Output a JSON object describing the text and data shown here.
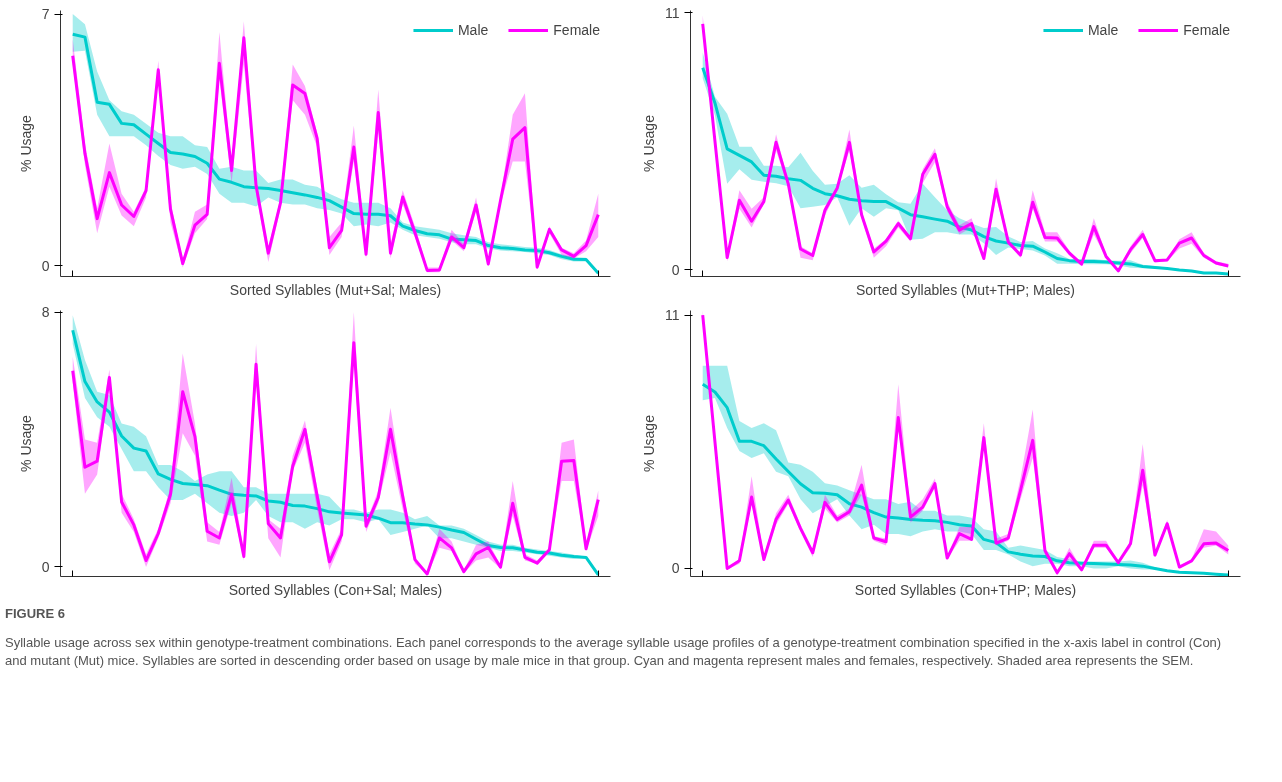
{
  "chart_data": [
    {
      "type": "line",
      "xlabel": "Sorted Syllables (Mut+Sal; Males)",
      "ylabel": "% Usage",
      "categories": [
        null,
        null,
        null,
        null,
        null,
        null,
        null,
        null,
        null,
        null,
        null,
        null,
        null,
        null,
        null,
        null,
        null,
        null,
        null,
        null,
        null,
        null,
        null,
        null,
        null,
        null,
        null,
        null,
        null,
        null,
        null,
        null,
        null,
        null,
        null,
        null,
        null,
        null,
        null,
        null,
        null,
        null,
        null,
        null
      ],
      "ylim": [
        -0.3,
        7.1
      ],
      "yticks": [
        0,
        7
      ],
      "tick_labels": "y",
      "grid": false,
      "legend": "top right",
      "line_style": "solid",
      "series": [
        {
          "name": "Male",
          "color": "#00cccc",
          "values": [
            6.44,
            6.36,
            4.55,
            4.49,
            3.96,
            3.92,
            3.66,
            3.4,
            3.15,
            3.11,
            3.04,
            2.85,
            2.41,
            2.32,
            2.2,
            2.17,
            2.15,
            2.09,
            2.03,
            1.97,
            1.9,
            1.81,
            1.63,
            1.45,
            1.43,
            1.43,
            1.39,
            1.1,
            0.98,
            0.89,
            0.86,
            0.74,
            0.72,
            0.7,
            0.56,
            0.5,
            0.48,
            0.44,
            0.42,
            0.36,
            0.26,
            0.18,
            0.17,
            -0.21
          ],
          "lower": [
            5.95,
            5.98,
            4.2,
            3.6,
            3.6,
            3.6,
            3.35,
            3.05,
            2.8,
            2.7,
            2.75,
            2.55,
            2.0,
            1.75,
            1.75,
            1.65,
            1.9,
            1.75,
            1.7,
            1.7,
            1.6,
            1.55,
            1.45,
            1.1,
            1.15,
            1.1,
            1.2,
            1.0,
            0.85,
            0.8,
            0.75,
            0.65,
            0.6,
            0.6,
            0.48,
            0.42,
            0.4,
            0.38,
            0.34,
            0.3,
            0.18,
            0.12,
            0.12,
            -0.25
          ],
          "upper": [
            7.0,
            6.72,
            5.4,
            4.6,
            4.3,
            4.2,
            3.95,
            3.7,
            3.6,
            3.6,
            3.35,
            3.3,
            2.7,
            2.75,
            2.65,
            2.65,
            2.3,
            2.4,
            2.4,
            2.25,
            2.2,
            2.0,
            1.85,
            1.75,
            1.75,
            1.75,
            1.6,
            1.2,
            1.1,
            1.05,
            1.0,
            0.9,
            0.85,
            0.8,
            0.65,
            0.6,
            0.56,
            0.52,
            0.5,
            0.44,
            0.32,
            0.24,
            0.22,
            -0.17
          ]
        },
        {
          "name": "Female",
          "color": "#ff00ff",
          "values": [
            5.84,
            3.12,
            1.31,
            2.59,
            1.69,
            1.37,
            2.09,
            5.45,
            1.57,
            0.06,
            1.13,
            1.43,
            5.63,
            2.65,
            6.34,
            2.23,
            0.35,
            1.75,
            5.03,
            4.79,
            3.54,
            0.5,
            0.98,
            3.3,
            0.32,
            4.26,
            0.35,
            1.91,
            0.92,
            -0.13,
            -0.12,
            0.8,
            0.5,
            1.69,
            0.05,
            1.81,
            3.52,
            3.84,
            -0.04,
            1.01,
            0.44,
            0.26,
            0.56,
            1.42
          ],
          "lower": [
            5.6,
            2.8,
            0.9,
            2.2,
            1.4,
            1.1,
            1.9,
            5.2,
            1.2,
            -0.05,
            0.9,
            1.3,
            5.2,
            2.3,
            5.6,
            2.0,
            0.1,
            1.6,
            4.6,
            4.2,
            3.3,
            0.3,
            0.8,
            2.9,
            0.2,
            3.7,
            0.2,
            1.7,
            0.8,
            -0.18,
            -0.18,
            0.7,
            0.4,
            1.5,
            -0.02,
            1.7,
            2.9,
            2.9,
            -0.1,
            0.9,
            0.3,
            0.2,
            0.4,
            0.8
          ],
          "upper": [
            6.3,
            3.4,
            1.6,
            3.4,
            2.0,
            1.5,
            2.2,
            5.7,
            1.8,
            0.15,
            1.5,
            1.7,
            6.5,
            2.8,
            6.8,
            2.4,
            0.5,
            1.9,
            5.6,
            5.0,
            3.7,
            0.8,
            1.2,
            3.9,
            0.5,
            4.9,
            0.6,
            2.1,
            1.1,
            -0.05,
            -0.05,
            1.0,
            0.6,
            1.9,
            0.1,
            1.9,
            4.2,
            4.8,
            0.05,
            1.1,
            0.5,
            0.35,
            0.7,
            2.0
          ]
        }
      ]
    },
    {
      "type": "line",
      "xlabel": "Sorted Syllables (Mut+THP; Males)",
      "ylabel": "% Usage",
      "categories": [
        null,
        null,
        null,
        null,
        null,
        null,
        null,
        null,
        null,
        null,
        null,
        null,
        null,
        null,
        null,
        null,
        null,
        null,
        null,
        null,
        null,
        null,
        null,
        null,
        null,
        null,
        null,
        null,
        null,
        null,
        null,
        null,
        null,
        null,
        null,
        null,
        null,
        null,
        null,
        null,
        null,
        null,
        null,
        null
      ],
      "ylim": [
        -0.3,
        11.1
      ],
      "yticks": [
        0,
        11
      ],
      "tick_labels": "y",
      "grid": false,
      "legend": "top right",
      "line_style": "solid",
      "series": [
        {
          "name": "Male",
          "color": "#00cccc",
          "values": [
            8.65,
            7.14,
            5.17,
            4.89,
            4.61,
            4.04,
            4.0,
            3.89,
            3.82,
            3.48,
            3.25,
            3.16,
            3.01,
            2.95,
            2.91,
            2.91,
            2.63,
            2.35,
            2.26,
            2.16,
            2.07,
            1.82,
            1.69,
            1.41,
            1.22,
            1.13,
            1.03,
            1.0,
            0.75,
            0.47,
            0.38,
            0.34,
            0.34,
            0.32,
            0.28,
            0.24,
            0.13,
            0.09,
            0.04,
            -0.02,
            -0.06,
            -0.15,
            -0.15,
            -0.19
          ],
          "lower": [
            8.2,
            6.6,
            3.67,
            4.3,
            3.85,
            3.76,
            3.7,
            3.57,
            2.63,
            2.69,
            2.76,
            3.1,
            1.88,
            2.63,
            2.26,
            2.63,
            2.54,
            1.28,
            1.32,
            1.6,
            1.6,
            1.5,
            1.5,
            1.13,
            0.62,
            0.94,
            0.88,
            0.81,
            0.6,
            0.25,
            0.25,
            0.22,
            0.22,
            0.22,
            0.18,
            0.08,
            0.05,
            0.04,
            0.01,
            -0.05,
            -0.09,
            -0.18,
            -0.18,
            -0.22
          ],
          "upper": [
            9.3,
            7.4,
            6.67,
            5.26,
            5.26,
            4.45,
            4.45,
            4.38,
            5.0,
            4.23,
            3.63,
            3.67,
            4.04,
            3.5,
            3.63,
            3.23,
            2.88,
            2.82,
            3.67,
            3.1,
            2.54,
            2.2,
            1.97,
            1.78,
            1.82,
            1.41,
            1.18,
            1.22,
            0.9,
            0.7,
            0.45,
            0.45,
            0.45,
            0.4,
            0.38,
            0.4,
            0.2,
            0.15,
            0.07,
            0.01,
            -0.03,
            -0.12,
            -0.12,
            -0.16
          ]
        },
        {
          "name": "Female",
          "color": "#ff00ff",
          "values": [
            10.53,
            5.5,
            0.51,
            2.97,
            2.07,
            2.91,
            5.45,
            3.67,
            0.88,
            0.6,
            2.54,
            3.48,
            5.45,
            2.35,
            0.75,
            1.22,
            1.97,
            1.32,
            4.08,
            4.94,
            2.69,
            1.69,
            1.97,
            0.47,
            3.44,
            1.17,
            0.62,
            2.88,
            1.37,
            1.35,
            0.7,
            0.23,
            1.84,
            0.56,
            -0.06,
            0.85,
            1.5,
            0.38,
            0.41,
            1.13,
            1.35,
            0.6,
            0.28,
            0.15
          ],
          "lower": [
            10.2,
            5.3,
            0.35,
            2.6,
            1.8,
            2.8,
            5.1,
            3.5,
            0.5,
            0.4,
            2.3,
            3.4,
            5.1,
            2.2,
            0.5,
            1.0,
            1.8,
            1.2,
            3.7,
            4.6,
            2.5,
            1.5,
            1.8,
            0.4,
            3.1,
            1.1,
            0.5,
            2.6,
            1.2,
            1.2,
            0.6,
            0.15,
            1.5,
            0.5,
            -0.1,
            0.7,
            1.35,
            0.3,
            0.35,
            0.9,
            1.1,
            0.5,
            0.2,
            0.1
          ],
          "upper": [
            10.9,
            5.7,
            0.6,
            3.4,
            2.6,
            3.1,
            5.8,
            3.8,
            1.0,
            0.7,
            2.7,
            3.6,
            6.0,
            2.5,
            0.9,
            1.3,
            2.1,
            1.4,
            4.3,
            5.2,
            2.9,
            1.9,
            2.2,
            0.55,
            3.9,
            1.3,
            0.7,
            3.4,
            1.6,
            1.6,
            0.8,
            0.3,
            2.2,
            0.65,
            0.0,
            1.0,
            1.7,
            0.45,
            0.45,
            1.3,
            1.6,
            0.7,
            0.35,
            0.25
          ]
        }
      ]
    },
    {
      "type": "line",
      "xlabel": "Sorted Syllables (Con+Sal; Males)",
      "ylabel": "% Usage",
      "categories": [
        null,
        null,
        null,
        null,
        null,
        null,
        null,
        null,
        null,
        null,
        null,
        null,
        null,
        null,
        null,
        null,
        null,
        null,
        null,
        null,
        null,
        null,
        null,
        null,
        null,
        null,
        null,
        null,
        null,
        null,
        null,
        null,
        null,
        null,
        null,
        null,
        null,
        null,
        null,
        null,
        null,
        null,
        null,
        null
      ],
      "ylim": [
        -0.3,
        8.05
      ],
      "yticks": [
        0,
        8
      ],
      "tick_labels": "y",
      "grid": false,
      "line_style": "solid",
      "series": [
        {
          "color": "#00cccc",
          "values": [
            7.43,
            5.82,
            5.18,
            4.86,
            4.11,
            3.73,
            3.64,
            2.92,
            2.75,
            2.62,
            2.59,
            2.55,
            2.41,
            2.28,
            2.25,
            2.23,
            2.07,
            2.03,
            1.93,
            1.91,
            1.83,
            1.73,
            1.69,
            1.66,
            1.63,
            1.53,
            1.39,
            1.39,
            1.35,
            1.32,
            1.25,
            1.16,
            1.08,
            0.87,
            0.67,
            0.61,
            0.6,
            0.53,
            0.46,
            0.44,
            0.37,
            0.33,
            0.3,
            -0.25
          ],
          "lower": [
            7.0,
            5.3,
            4.7,
            4.4,
            3.7,
            3.0,
            3.0,
            2.5,
            2.1,
            2.1,
            2.3,
            2.0,
            1.7,
            1.6,
            1.7,
            2.1,
            1.6,
            1.4,
            1.4,
            1.2,
            1.4,
            1.3,
            1.5,
            1.5,
            1.4,
            1.5,
            1.0,
            1.1,
            1.2,
            1.3,
            0.9,
            0.9,
            0.8,
            0.7,
            0.6,
            0.5,
            0.5,
            0.45,
            0.4,
            0.35,
            0.3,
            0.25,
            0.28,
            -0.28
          ],
          "upper": [
            7.9,
            6.5,
            5.5,
            5.4,
            4.5,
            4.4,
            4.1,
            3.2,
            3.2,
            3.0,
            2.7,
            2.9,
            3.0,
            3.0,
            2.5,
            2.5,
            2.3,
            2.3,
            2.3,
            2.3,
            2.3,
            2.2,
            1.8,
            1.8,
            1.7,
            1.8,
            1.8,
            1.7,
            1.5,
            1.6,
            1.3,
            1.3,
            1.2,
            1.0,
            0.8,
            0.7,
            0.7,
            0.6,
            0.55,
            0.5,
            0.45,
            0.38,
            0.32,
            -0.22
          ]
        },
        {
          "color": "#ff00ff",
          "values": [
            6.16,
            3.13,
            3.32,
            5.95,
            2.04,
            1.32,
            0.2,
            1.05,
            2.28,
            5.5,
            4.09,
            1.12,
            0.91,
            2.28,
            0.33,
            6.36,
            1.36,
            0.91,
            3.16,
            4.32,
            2.23,
            0.16,
            1.01,
            7.04,
            1.28,
            2.18,
            4.32,
            2.21,
            0.23,
            -0.22,
            0.91,
            0.6,
            -0.15,
            0.41,
            0.61,
            -0.01,
            2.0,
            0.3,
            0.12,
            0.54,
            3.32,
            3.34,
            0.57,
            2.11
          ],
          "lower": [
            5.8,
            2.3,
            2.9,
            5.7,
            1.7,
            1.1,
            0.0,
            0.9,
            2.0,
            4.2,
            3.5,
            0.8,
            0.7,
            2.0,
            0.2,
            5.8,
            0.9,
            0.3,
            3.0,
            3.9,
            1.8,
            -0.1,
            0.8,
            6.4,
            1.1,
            2.0,
            3.6,
            1.8,
            0.1,
            -0.25,
            0.6,
            0.5,
            -0.2,
            0.2,
            0.3,
            -0.05,
            1.6,
            0.2,
            0.1,
            0.5,
            2.7,
            2.7,
            0.5,
            1.6
          ],
          "upper": [
            6.6,
            4.0,
            3.9,
            6.2,
            2.3,
            1.5,
            0.4,
            1.2,
            2.5,
            6.7,
            4.5,
            1.4,
            1.1,
            2.8,
            0.5,
            7.0,
            1.5,
            1.2,
            3.5,
            4.6,
            2.5,
            0.4,
            1.2,
            8.0,
            1.4,
            2.4,
            5.0,
            2.5,
            0.3,
            -0.2,
            1.2,
            0.8,
            -0.1,
            0.7,
            0.8,
            0.05,
            2.7,
            0.4,
            0.2,
            0.6,
            3.9,
            4.0,
            0.7,
            2.4
          ]
        }
      ]
    },
    {
      "type": "line",
      "xlabel": "Sorted Syllables (Con+THP; Males)",
      "ylabel": "% Usage",
      "categories": [
        null,
        null,
        null,
        null,
        null,
        null,
        null,
        null,
        null,
        null,
        null,
        null,
        null,
        null,
        null,
        null,
        null,
        null,
        null,
        null,
        null,
        null,
        null,
        null,
        null,
        null,
        null,
        null,
        null,
        null,
        null,
        null,
        null,
        null,
        null,
        null,
        null,
        null,
        null,
        null,
        null,
        null,
        null,
        null
      ],
      "ylim": [
        -0.35,
        11.2
      ],
      "yticks": [
        0,
        11
      ],
      "tick_labels": "y",
      "grid": false,
      "line_style": "solid",
      "annotations": [
        "FIGURE 6",
        "Syllable usage across sex within genotype-treatment combinations. Each panel corresponds to the average syllable usage profiles of a genotype-treatment combination specified in the x-axis label in control (Con) and mutant (Mut) mice. Syllables are sorted in descending order based on usage by male mice in that group. Cyan and magenta represent males and females, respectively. Shaded area represents the SEM."
      ],
      "series": [
        {
          "color": "#00cccc",
          "values": [
            8.0,
            7.66,
            6.98,
            5.52,
            5.52,
            5.33,
            4.75,
            4.21,
            3.68,
            3.29,
            3.26,
            3.2,
            2.81,
            2.66,
            2.42,
            2.23,
            2.19,
            2.13,
            2.09,
            2.07,
            2.0,
            1.9,
            1.84,
            1.26,
            1.12,
            0.72,
            0.62,
            0.54,
            0.52,
            0.33,
            0.25,
            0.23,
            0.21,
            0.19,
            0.17,
            0.15,
            0.1,
            0.0,
            -0.1,
            -0.17,
            -0.19,
            -0.21,
            -0.25,
            -0.29
          ],
          "lower": [
            7.3,
            7.4,
            6.1,
            5.1,
            4.8,
            5.0,
            4.2,
            4.0,
            3.0,
            2.4,
            2.7,
            3.0,
            2.3,
            1.7,
            1.9,
            1.5,
            1.5,
            1.4,
            1.6,
            1.7,
            1.6,
            1.6,
            1.5,
            0.8,
            0.8,
            0.6,
            0.3,
            0.1,
            0.2,
            0.2,
            0.1,
            0.1,
            0.0,
            0.0,
            0.1,
            0.0,
            -0.05,
            -0.05,
            -0.13,
            -0.2,
            -0.22,
            -0.24,
            -0.28,
            -0.32
          ],
          "upper": [
            8.8,
            8.8,
            8.8,
            6.4,
            6.1,
            6.3,
            6.0,
            4.6,
            4.5,
            4.2,
            3.7,
            3.6,
            3.4,
            3.2,
            3.0,
            3.0,
            2.8,
            2.9,
            2.5,
            2.5,
            2.3,
            2.3,
            2.2,
            1.7,
            1.6,
            0.9,
            1.0,
            0.9,
            0.8,
            0.5,
            0.4,
            0.3,
            0.3,
            0.3,
            0.3,
            0.35,
            0.25,
            0.05,
            -0.07,
            -0.14,
            -0.16,
            -0.18,
            -0.22,
            -0.26
          ]
        },
        {
          "color": "#ff00ff",
          "values": [
            11.0,
            5.5,
            0.0,
            0.33,
            3.1,
            0.39,
            2.13,
            2.97,
            1.74,
            0.68,
            2.87,
            2.13,
            2.46,
            3.62,
            1.32,
            1.16,
            6.55,
            2.23,
            2.66,
            3.68,
            0.45,
            1.51,
            1.26,
            5.68,
            1.1,
            1.32,
            3.39,
            5.56,
            0.78,
            -0.19,
            0.64,
            -0.06,
            1.01,
            1.01,
            0.25,
            1.07,
            4.26,
            0.58,
            1.94,
            0.06,
            0.33,
            1.07,
            1.1,
            0.78
          ],
          "lower": [
            10.8,
            5.4,
            -0.05,
            0.2,
            2.8,
            0.3,
            1.9,
            2.8,
            1.6,
            0.5,
            2.6,
            2.0,
            2.3,
            3.2,
            1.2,
            1.0,
            6.1,
            2.0,
            2.5,
            3.5,
            0.4,
            1.2,
            1.2,
            5.5,
            1.0,
            1.2,
            3.0,
            4.8,
            0.6,
            -0.2,
            0.4,
            -0.1,
            0.9,
            0.9,
            0.2,
            0.9,
            3.6,
            0.5,
            1.8,
            0.0,
            0.3,
            0.9,
            1.0,
            0.6
          ],
          "upper": [
            11.2,
            5.6,
            0.05,
            0.4,
            4.0,
            0.5,
            2.4,
            3.2,
            1.9,
            0.8,
            3.2,
            2.3,
            2.6,
            4.5,
            1.4,
            1.3,
            8.0,
            2.5,
            3.0,
            3.9,
            0.5,
            1.8,
            1.8,
            6.3,
            1.3,
            1.5,
            3.9,
            6.9,
            0.9,
            -0.15,
            0.9,
            0.0,
            1.2,
            1.2,
            0.3,
            1.2,
            5.4,
            0.7,
            2.1,
            0.1,
            0.4,
            1.7,
            1.6,
            1.0
          ]
        }
      ]
    }
  ]
}
